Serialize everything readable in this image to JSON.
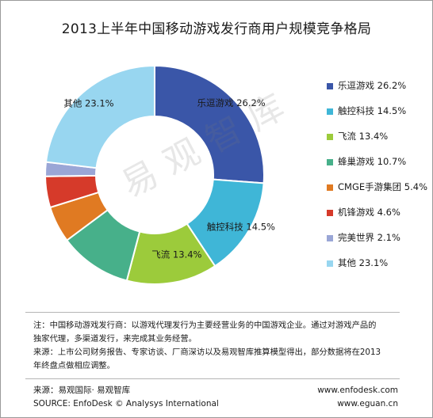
{
  "watermark": "易观智库",
  "chart_data": {
    "type": "pie",
    "title": "2013上半年中国移动游戏发行商用户规模竞争格局",
    "donut": true,
    "legend_position": "right",
    "slices": [
      {
        "name": "乐逗游戏",
        "value": 26.2,
        "label": "26.2%",
        "color": "#3A56A8",
        "inside_label": "乐逗游戏 26.2%"
      },
      {
        "name": "触控科技",
        "value": 14.5,
        "label": "14.5%",
        "color": "#3FB6D7",
        "inside_label": "触控科技 14.5%"
      },
      {
        "name": "飞流",
        "value": 13.4,
        "label": "13.4%",
        "color": "#9CCB3B",
        "inside_label": "飞流 13.4%"
      },
      {
        "name": "蜂巢游戏",
        "value": 10.7,
        "label": "10.7%",
        "color": "#47B08A",
        "inside_label": ""
      },
      {
        "name": "CMGE手游集团",
        "value": 5.4,
        "label": "5.4%",
        "color": "#E07A22",
        "inside_label": ""
      },
      {
        "name": "机锋游戏",
        "value": 4.6,
        "label": "4.6%",
        "color": "#D63A2A",
        "inside_label": ""
      },
      {
        "name": "完美世界",
        "value": 2.1,
        "label": "2.1%",
        "color": "#9AA6D6",
        "inside_label": ""
      },
      {
        "name": "其他",
        "value": 23.1,
        "label": "23.1%",
        "color": "#98D6F0",
        "inside_label": "其他 23.1%"
      }
    ]
  },
  "note": {
    "line1": "注：中国移动游戏发行商：以游戏代理发行为主要经营业务的中国游戏企业。通过对游戏产品的",
    "line2": "独家代理，多渠道发行，来完成其业务经营。",
    "line3": "来源：上市公司财务报告、专家访谈、厂商深访以及易观智库推算模型得出，部分数据将在2013",
    "line4": "年终盘点做相应调整。"
  },
  "footer": {
    "source_cn": "来源：易观国际· 易观智库",
    "source_en": "SOURCE: EnfoDesk © Analysys International",
    "url1": "www.enfodesk.com",
    "url2": "www.eguan.cn"
  }
}
